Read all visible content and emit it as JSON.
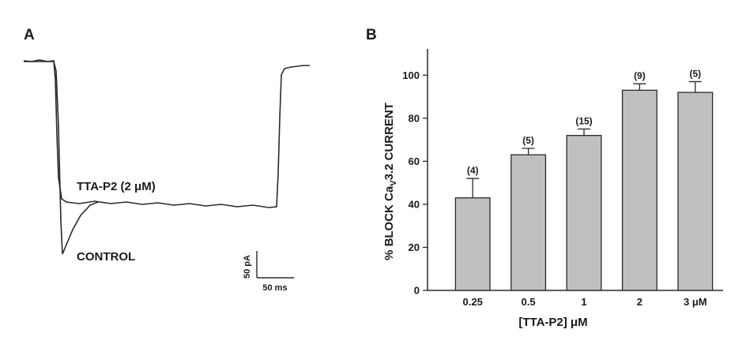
{
  "panel_a": {
    "label": "A",
    "trace_labels": {
      "drug": "TTA-P2 (2 μM)",
      "control": "CONTROL"
    },
    "scale_bar": {
      "current": "50 pA",
      "time": "50 ms"
    }
  },
  "panel_b": {
    "label": "B"
  },
  "chart_data": {
    "type": "bar",
    "categories": [
      "0.25",
      "0.5",
      "1",
      "2",
      "3 μM"
    ],
    "values": [
      43,
      63,
      72,
      93,
      92
    ],
    "errors": [
      9,
      3,
      3,
      3,
      5
    ],
    "n_labels": [
      "(4)",
      "(5)",
      "(15)",
      "(9)",
      "(5)"
    ],
    "xlabel": "[TTA-P2] μM",
    "ylabel": {
      "prefix": "% BLOCK Ca",
      "subscript": "V",
      "suffix": "3.2 CURRENT"
    },
    "ylim": [
      0,
      110
    ],
    "yticks": [
      0,
      20,
      40,
      60,
      80,
      100
    ],
    "bar_color": "#c0c0c0",
    "grid": false
  }
}
